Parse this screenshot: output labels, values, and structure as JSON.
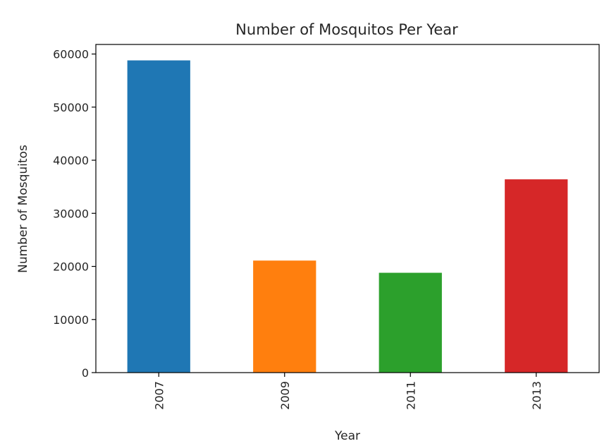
{
  "chart_data": {
    "type": "bar",
    "title": "Number of Mosquitos Per Year",
    "xlabel": "Year",
    "ylabel": "Number of Mosquitos",
    "categories": [
      "2007",
      "2009",
      "2011",
      "2013"
    ],
    "values": [
      58800,
      21100,
      18800,
      36400
    ],
    "colors": [
      "#1f77b4",
      "#ff7f0e",
      "#2ca02c",
      "#d62728"
    ],
    "ylim": [
      0,
      61800
    ],
    "yticks": [
      0,
      10000,
      20000,
      30000,
      40000,
      50000,
      60000
    ],
    "ytick_labels": [
      "0",
      "10000",
      "20000",
      "30000",
      "40000",
      "50000",
      "60000"
    ],
    "xtick_rotation": "vertical",
    "grid": false,
    "legend": "none"
  }
}
